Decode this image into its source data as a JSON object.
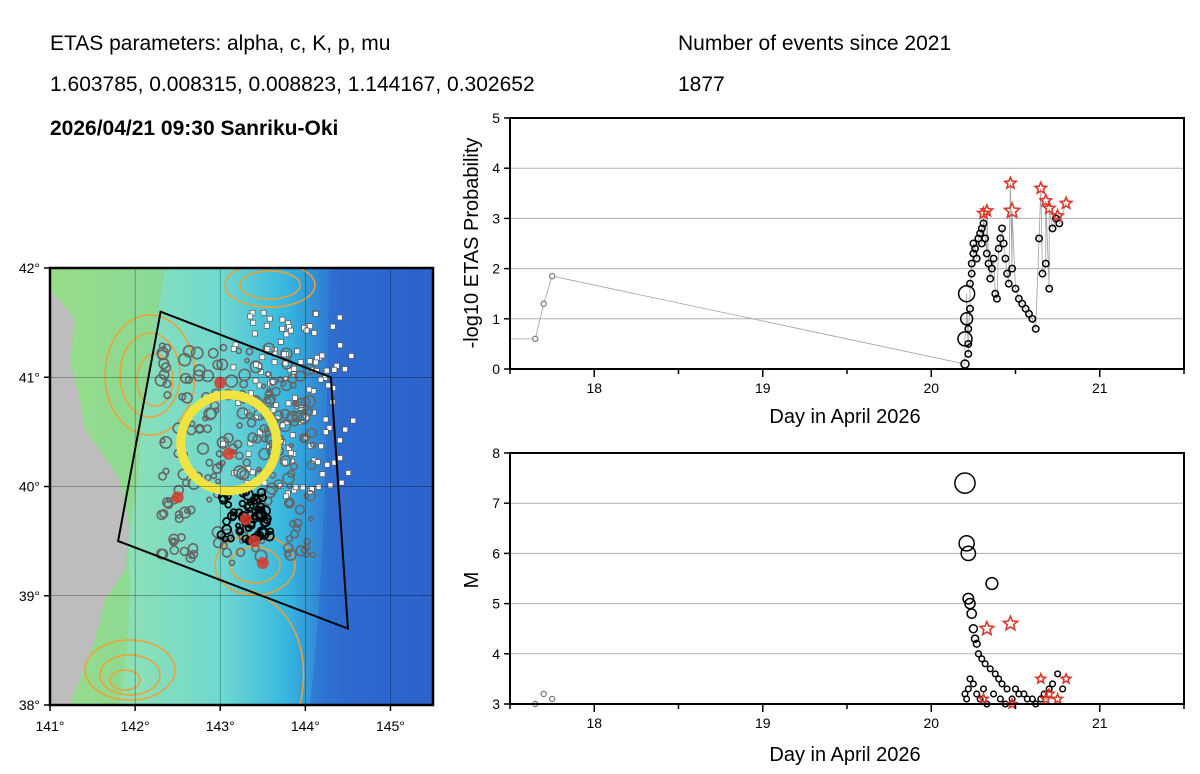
{
  "header": {
    "params_label": "ETAS parameters: alpha, c, K, p, mu",
    "params_values": "1.603785, 0.008315, 0.008823, 1.144167, 0.302652",
    "event_title": "2026/04/21 09:30 Sanriku-Oki",
    "events_label": "Number of events since 2021",
    "events_count": "1877"
  },
  "colors": {
    "star": "#d9382b",
    "event": "#000000",
    "grid": "#b0b0b0",
    "connector": "#a0a0a0",
    "map_circle": "#f0e442",
    "map_land": "#bdbdbd",
    "contour": "#f0a030"
  },
  "map": {
    "lon_ticks": [
      "141°",
      "142°",
      "143°",
      "144°",
      "145°"
    ],
    "lat_ticks": [
      "42°",
      "41°",
      "40°",
      "39°",
      "38°"
    ],
    "lon_range": [
      141,
      145.5
    ],
    "lat_range": [
      38,
      42
    ],
    "highlight_center": [
      143.1,
      40.4
    ],
    "polygon": [
      [
        142.3,
        41.6
      ],
      [
        144.3,
        41.0
      ],
      [
        144.5,
        38.7
      ],
      [
        141.8,
        39.5
      ]
    ]
  },
  "chart_data": [
    {
      "type": "scatter",
      "ylabel": "-log10 ETAS Probability",
      "xlabel": "Day in April 2026",
      "xlim": [
        17.5,
        21.5
      ],
      "ylim": [
        0,
        5
      ],
      "x_ticks": [
        "18",
        "19",
        "20",
        "21"
      ],
      "y_ticks": [
        "0",
        "1",
        "2",
        "3",
        "4",
        "5"
      ],
      "grid": true,
      "series": [
        {
          "name": "small-events",
          "x": [
            17.65,
            17.7,
            17.75
          ],
          "values": [
            0.6,
            1.3,
            1.85
          ]
        },
        {
          "name": "events",
          "x": [
            20.2,
            20.2,
            20.21,
            20.21,
            20.22,
            20.22,
            20.22,
            20.23,
            20.23,
            20.24,
            20.24,
            20.25,
            20.25,
            20.26,
            20.27,
            20.28,
            20.29,
            20.3,
            20.3,
            20.31,
            20.32,
            20.33,
            20.34,
            20.35,
            20.36,
            20.37,
            20.38,
            20.39,
            20.4,
            20.41,
            20.42,
            20.43,
            20.44,
            20.45,
            20.46,
            20.48,
            20.5,
            20.52,
            20.54,
            20.56,
            20.58,
            20.6,
            20.62,
            20.64,
            20.66,
            20.68,
            20.7,
            20.72,
            20.74,
            20.76
          ],
          "values": [
            0.1,
            0.6,
            1.0,
            1.5,
            0.3,
            0.5,
            0.8,
            1.2,
            1.7,
            1.9,
            2.1,
            2.3,
            2.5,
            2.4,
            2.2,
            2.6,
            2.7,
            2.8,
            2.5,
            2.9,
            2.6,
            2.3,
            2.1,
            1.8,
            2.0,
            2.2,
            1.5,
            1.4,
            2.4,
            2.6,
            2.8,
            2.5,
            2.2,
            1.9,
            1.7,
            2.0,
            1.6,
            1.4,
            1.3,
            1.2,
            1.1,
            1.0,
            0.8,
            2.6,
            1.9,
            2.1,
            1.6,
            2.8,
            3.0,
            2.9
          ]
        },
        {
          "name": "star-events",
          "x": [
            20.31,
            20.33,
            20.47,
            20.48,
            20.65,
            20.68,
            20.7,
            20.75,
            20.8
          ],
          "values": [
            3.1,
            3.15,
            3.7,
            3.15,
            3.6,
            3.35,
            3.2,
            3.05,
            3.3
          ]
        }
      ]
    },
    {
      "type": "scatter",
      "ylabel": "M",
      "xlabel": "Day in April 2026",
      "xlim": [
        17.5,
        21.5
      ],
      "ylim": [
        3,
        8
      ],
      "x_ticks": [
        "18",
        "19",
        "20",
        "21"
      ],
      "y_ticks": [
        "3",
        "4",
        "5",
        "6",
        "7",
        "8"
      ],
      "grid": true,
      "series": [
        {
          "name": "small-events",
          "x": [
            17.65,
            17.7,
            17.75
          ],
          "values": [
            3.0,
            3.2,
            3.1
          ]
        },
        {
          "name": "events",
          "x": [
            20.2,
            20.21,
            20.22,
            20.22,
            20.23,
            20.24,
            20.25,
            20.26,
            20.27,
            20.28,
            20.3,
            20.32,
            20.35,
            20.36,
            20.38,
            20.4,
            20.42,
            20.45,
            20.5,
            20.55,
            20.6,
            20.65,
            20.7,
            20.75,
            20.2,
            20.21,
            20.22,
            20.23,
            20.25,
            20.27,
            20.29,
            20.31,
            20.33,
            20.37,
            20.41,
            20.44,
            20.48,
            20.52,
            20.57,
            20.62,
            20.67,
            20.72,
            20.78
          ],
          "values": [
            7.4,
            6.2,
            6.0,
            5.1,
            5.0,
            4.8,
            4.5,
            4.3,
            4.2,
            4.0,
            3.9,
            3.8,
            3.7,
            5.4,
            3.6,
            3.5,
            3.4,
            3.3,
            3.3,
            3.2,
            3.1,
            3.1,
            3.3,
            3.6,
            3.2,
            3.1,
            3.3,
            3.5,
            3.4,
            3.2,
            3.1,
            3.3,
            3.0,
            3.2,
            3.1,
            3.0,
            3.1,
            3.2,
            3.1,
            3.0,
            3.2,
            3.4,
            3.3
          ]
        },
        {
          "name": "star-events",
          "x": [
            20.31,
            20.33,
            20.47,
            20.48,
            20.65,
            20.68,
            20.7,
            20.75,
            20.8
          ],
          "values": [
            3.1,
            4.5,
            4.6,
            3.0,
            3.5,
            3.1,
            3.2,
            3.1,
            3.5
          ]
        }
      ]
    }
  ]
}
